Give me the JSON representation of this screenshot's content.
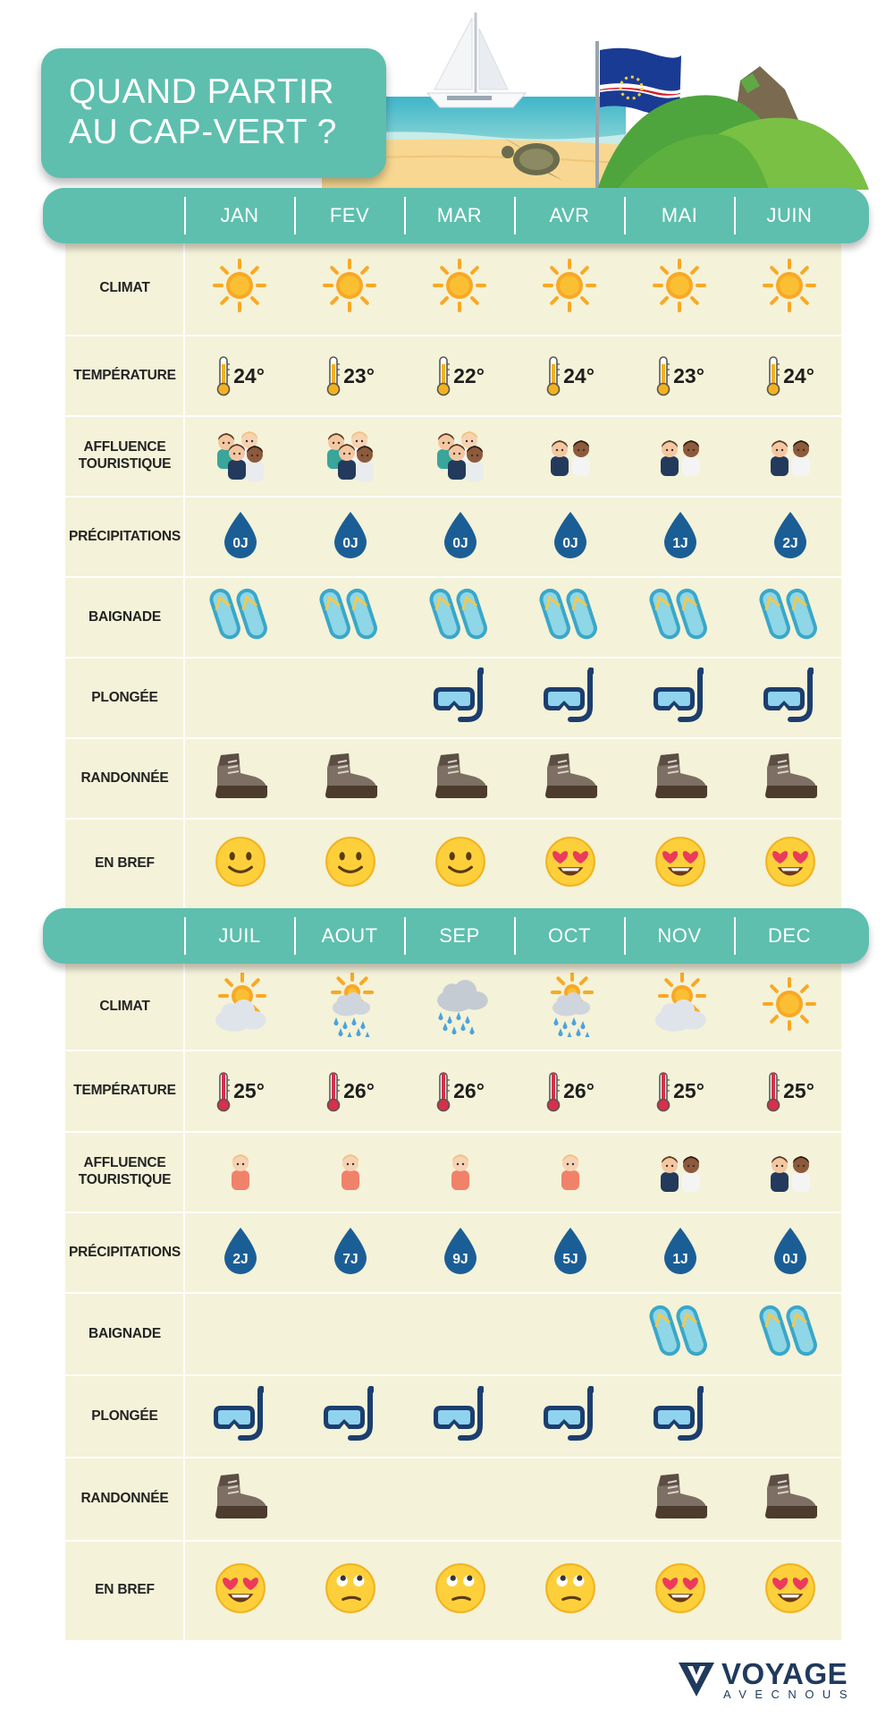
{
  "title": {
    "line1": "QUAND PARTIR",
    "line2": "AU CAP-VERT ?"
  },
  "row_labels": {
    "climat": "CLIMAT",
    "temperature": "TEMPÉRATURE",
    "affluence": "AFFLUENCE\nTOURISTIQUE",
    "precipitations": "PRÉCIPITATIONS",
    "baignade": "BAIGNADE",
    "plongee": "PLONGÉE",
    "randonnee": "RANDONNÉE",
    "en_bref": "EN BREF"
  },
  "months": [
    {
      "name": "JAN",
      "climat": "sun",
      "temp": "24°",
      "temp_level": "medium",
      "affluence": "high",
      "precip": "0J",
      "baignade": true,
      "plongee": false,
      "randonnee": true,
      "bref": "smile"
    },
    {
      "name": "FEV",
      "climat": "sun",
      "temp": "23°",
      "temp_level": "medium",
      "affluence": "high",
      "precip": "0J",
      "baignade": true,
      "plongee": false,
      "randonnee": true,
      "bref": "smile"
    },
    {
      "name": "MAR",
      "climat": "sun",
      "temp": "22°",
      "temp_level": "medium",
      "affluence": "high",
      "precip": "0J",
      "baignade": true,
      "plongee": true,
      "randonnee": true,
      "bref": "smile"
    },
    {
      "name": "AVR",
      "climat": "sun",
      "temp": "24°",
      "temp_level": "medium",
      "affluence": "medium",
      "precip": "0J",
      "baignade": true,
      "plongee": true,
      "randonnee": true,
      "bref": "love"
    },
    {
      "name": "MAI",
      "climat": "sun",
      "temp": "23°",
      "temp_level": "medium",
      "affluence": "medium",
      "precip": "1J",
      "baignade": true,
      "plongee": true,
      "randonnee": true,
      "bref": "love"
    },
    {
      "name": "JUIN",
      "climat": "sun",
      "temp": "24°",
      "temp_level": "medium",
      "affluence": "medium",
      "precip": "2J",
      "baignade": true,
      "plongee": true,
      "randonnee": true,
      "bref": "love"
    },
    {
      "name": "JUIL",
      "climat": "sun-cloud",
      "temp": "25°",
      "temp_level": "high",
      "affluence": "low",
      "precip": "2J",
      "baignade": false,
      "plongee": true,
      "randonnee": true,
      "bref": "love"
    },
    {
      "name": "AOUT",
      "climat": "sun-rain",
      "temp": "26°",
      "temp_level": "high",
      "affluence": "low",
      "precip": "7J",
      "baignade": false,
      "plongee": true,
      "randonnee": false,
      "bref": "meh"
    },
    {
      "name": "SEP",
      "climat": "rain",
      "temp": "26°",
      "temp_level": "high",
      "affluence": "low",
      "precip": "9J",
      "baignade": false,
      "plongee": true,
      "randonnee": false,
      "bref": "meh"
    },
    {
      "name": "OCT",
      "climat": "sun-rain",
      "temp": "26°",
      "temp_level": "high",
      "affluence": "low",
      "precip": "5J",
      "baignade": false,
      "plongee": true,
      "randonnee": false,
      "bref": "meh"
    },
    {
      "name": "NOV",
      "climat": "sun-cloud",
      "temp": "25°",
      "temp_level": "high",
      "affluence": "medium",
      "precip": "1J",
      "baignade": true,
      "plongee": true,
      "randonnee": true,
      "bref": "love"
    },
    {
      "name": "DEC",
      "climat": "sun",
      "temp": "25°",
      "temp_level": "high",
      "affluence": "medium",
      "precip": "0J",
      "baignade": true,
      "plongee": false,
      "randonnee": true,
      "bref": "love"
    }
  ],
  "logo": {
    "word": "VOYAGE",
    "sub": "AVECNOUS"
  },
  "colors": {
    "accent": "#5ebfae",
    "panel": "#f4f2d8",
    "drop": "#1b5e96",
    "sun": "#f9a825"
  }
}
